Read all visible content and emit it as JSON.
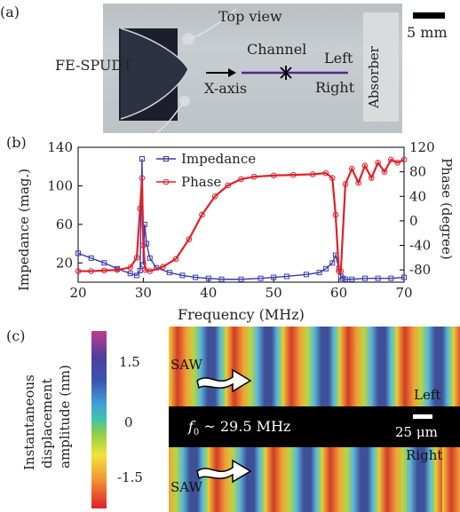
{
  "panel_a": {
    "label": "(a)",
    "top_view": "Top view",
    "scale": "5 mm",
    "fespudt": "FE-SPUDT",
    "channel": "Channel",
    "left": "Left",
    "right": "Right",
    "xaxis": "X-axis",
    "absorber": "Absorber"
  },
  "panel_b": {
    "label": "(b)",
    "chart_data": {
      "type": "line",
      "xlabel": "Frequency (MHz)",
      "ylabel_left": "Impedance (mag.)",
      "ylabel_right": "Phase (degree)",
      "xlim": [
        20,
        70
      ],
      "ylim_left": [
        0,
        140
      ],
      "ylim_right": [
        -100,
        120
      ],
      "x_ticks": [
        "20",
        "30",
        "40",
        "50",
        "60",
        "70"
      ],
      "y_left_ticks": [
        "20",
        "60",
        "100",
        "140"
      ],
      "y_right_ticks": [
        "-80",
        "-40",
        "0",
        "40",
        "80",
        "120"
      ],
      "legend": [
        "Impedance",
        "Phase"
      ],
      "colors": {
        "impedance": "#3a3ab0",
        "phase": "#e0202a"
      },
      "series": [
        {
          "name": "Impedance",
          "x": [
            20,
            22,
            24,
            26,
            28,
            29,
            29.5,
            29.8,
            30,
            30.2,
            30.5,
            31,
            32,
            34,
            36,
            38,
            40,
            42,
            45,
            48,
            50,
            52,
            55,
            57,
            58,
            59,
            59.5,
            60,
            60.3,
            60.6,
            61,
            62,
            64,
            66,
            68,
            70
          ],
          "y": [
            30,
            25,
            20,
            14,
            9,
            7,
            12,
            128,
            18,
            60,
            40,
            25,
            15,
            10,
            7,
            5,
            4,
            3,
            3,
            4,
            5,
            6,
            8,
            10,
            14,
            20,
            28,
            14,
            6,
            4,
            3,
            3,
            4,
            4,
            4,
            5
          ]
        },
        {
          "name": "Phase",
          "x": [
            20,
            22,
            24,
            26,
            28,
            29,
            29.5,
            29.8,
            30,
            30.3,
            31,
            33,
            35,
            37,
            39,
            41,
            43,
            45,
            47,
            50,
            53,
            56,
            58,
            59,
            59.5,
            60,
            60.3,
            61,
            62,
            63,
            64,
            65,
            66,
            67,
            68,
            69,
            70
          ],
          "y": [
            -82,
            -82,
            -81,
            -80,
            -76,
            -60,
            20,
            70,
            -40,
            -80,
            -82,
            -75,
            -62,
            -30,
            10,
            40,
            58,
            68,
            72,
            74,
            75,
            76,
            78,
            70,
            10,
            -82,
            -82,
            60,
            85,
            62,
            90,
            70,
            95,
            80,
            100,
            95,
            100
          ]
        }
      ]
    }
  },
  "panel_c": {
    "label": "(c)",
    "colorbar_label_1": "Instantaneous",
    "colorbar_label_2": "displacement",
    "colorbar_label_3": "amplitude (nm)",
    "ticks": [
      "1.5",
      "0",
      "-1.5"
    ],
    "saw_top": "SAW",
    "saw_bottom": "SAW",
    "left": "Left",
    "right": "Right",
    "freq_prefix": "f",
    "freq_sub": "0",
    "freq_rest": " ~ 29.5 MHz",
    "scale": "25 μm"
  }
}
